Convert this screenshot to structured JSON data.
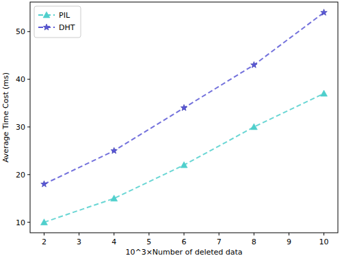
{
  "chart_data": {
    "type": "line",
    "x_label": "10^3×Number of deleted data",
    "y_label": "Average Time Cost (ms)",
    "x": [
      2,
      4,
      6,
      8,
      10
    ],
    "series": [
      {
        "name": "PIL",
        "color": "#4fcfcc",
        "marker": "triangle",
        "line_style": "dashed",
        "values": [
          10,
          15,
          22,
          30,
          37
        ]
      },
      {
        "name": "DHT",
        "color": "#5a58d6",
        "marker": "star",
        "line_style": "dashed",
        "values": [
          18,
          25,
          34,
          43,
          54
        ]
      }
    ],
    "xlim": [
      1.6,
      10.4
    ],
    "xticks": [
      2,
      3,
      4,
      5,
      6,
      7,
      8,
      9,
      10
    ],
    "ylim": [
      7.8,
      56.2
    ],
    "yticks": [
      10,
      20,
      30,
      40,
      50
    ],
    "grid": false,
    "legend": "upper left"
  }
}
